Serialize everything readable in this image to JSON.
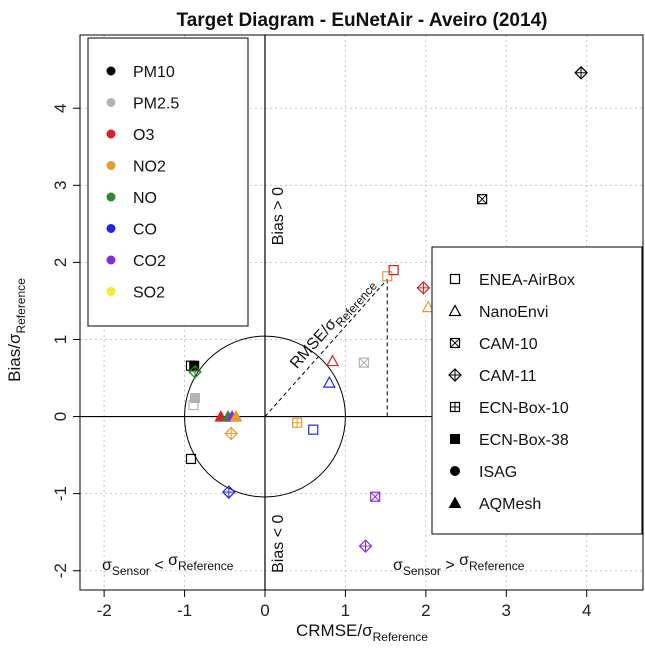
{
  "chart_data": {
    "type": "scatter",
    "title": "Target Diagram - EuNetAir - Aveiro (2014)",
    "xlabel": {
      "main": "CRMSE/σ",
      "sub": "Reference"
    },
    "ylabel": {
      "main": "Bias/σ",
      "sub": "Reference"
    },
    "xlim": [
      -2.3,
      4.7
    ],
    "ylim": [
      -2.25,
      4.95
    ],
    "x_ticks": [
      -2,
      -1,
      0,
      1,
      2,
      3,
      4
    ],
    "y_ticks": [
      -2,
      -1,
      0,
      1,
      2,
      3,
      4
    ],
    "grid": true,
    "unit_circle_radius": 1,
    "annotations": {
      "bias_pos": "Bias > 0",
      "bias_neg": "Bias < 0",
      "rmse_main": "RMSE/σ",
      "rmse_sub": "Reference",
      "sensor_lt": {
        "a": "σ",
        "a_sub": "Sensor",
        "op": " < ",
        "b": "σ",
        "b_sub": "Reference"
      },
      "sensor_gt": {
        "a": "σ",
        "a_sub": "Sensor",
        "op": " > ",
        "b": "σ",
        "b_sub": "Reference"
      }
    },
    "rmse_example_point": [
      1.52,
      1.78
    ],
    "pollutant_legend": [
      {
        "name": "PM10",
        "color": "#000000"
      },
      {
        "name": "PM2.5",
        "color": "#b3b3b3"
      },
      {
        "name": "O3",
        "color": "#dd1f26"
      },
      {
        "name": "NO2",
        "color": "#e89a2c"
      },
      {
        "name": "NO",
        "color": "#2b8a2b"
      },
      {
        "name": "CO",
        "color": "#2424ee"
      },
      {
        "name": "CO2",
        "color": "#8a2be2"
      },
      {
        "name": "SO2",
        "color": "#f2ee2a"
      }
    ],
    "sensor_legend": [
      {
        "name": "ENEA-AirBox",
        "marker": "square"
      },
      {
        "name": "NanoEnvi",
        "marker": "triangle"
      },
      {
        "name": "CAM-10",
        "marker": "square-x"
      },
      {
        "name": "CAM-11",
        "marker": "diamond-plus"
      },
      {
        "name": "ECN-Box-10",
        "marker": "square-plus"
      },
      {
        "name": "ECN-Box-38",
        "marker": "square-filled"
      },
      {
        "name": "ISAG",
        "marker": "circle-filled"
      },
      {
        "name": "AQMesh",
        "marker": "triangle-filled"
      }
    ],
    "points": [
      {
        "x": -0.92,
        "y": 0.66,
        "marker": "square",
        "pollutant": "PM10"
      },
      {
        "x": -0.88,
        "y": 0.66,
        "marker": "square-filled",
        "pollutant": "PM10"
      },
      {
        "x": -0.87,
        "y": 0.58,
        "marker": "diamond-plus",
        "pollutant": "NO"
      },
      {
        "x": -0.87,
        "y": 0.24,
        "marker": "square-filled",
        "pollutant": "PM2.5"
      },
      {
        "x": -0.89,
        "y": 0.15,
        "marker": "square",
        "pollutant": "PM2.5"
      },
      {
        "x": -0.92,
        "y": -0.55,
        "marker": "square",
        "pollutant": "PM10"
      },
      {
        "x": -0.55,
        "y": 0.0,
        "marker": "triangle-filled",
        "pollutant": "O3"
      },
      {
        "x": -0.46,
        "y": 0.0,
        "marker": "triangle-filled",
        "pollutant": "NO"
      },
      {
        "x": -0.41,
        "y": 0.0,
        "marker": "triangle-filled",
        "pollutant": "CO2"
      },
      {
        "x": -0.36,
        "y": 0.0,
        "marker": "triangle-filled",
        "pollutant": "NO2"
      },
      {
        "x": -0.42,
        "y": -0.22,
        "marker": "diamond-plus",
        "pollutant": "NO2"
      },
      {
        "x": -0.45,
        "y": -0.98,
        "marker": "diamond-plus",
        "pollutant": "CO"
      },
      {
        "x": 0.4,
        "y": -0.08,
        "marker": "square-plus",
        "pollutant": "NO2"
      },
      {
        "x": 0.6,
        "y": -0.17,
        "marker": "square",
        "pollutant": "CO"
      },
      {
        "x": 0.8,
        "y": 0.44,
        "marker": "triangle",
        "pollutant": "CO"
      },
      {
        "x": 0.84,
        "y": 0.72,
        "marker": "triangle",
        "pollutant": "O3"
      },
      {
        "x": 1.23,
        "y": 0.7,
        "marker": "square-x",
        "pollutant": "PM2.5"
      },
      {
        "x": 1.52,
        "y": 1.82,
        "marker": "square",
        "pollutant": "NO2"
      },
      {
        "x": 1.6,
        "y": 1.9,
        "marker": "square",
        "pollutant": "O3"
      },
      {
        "x": 1.97,
        "y": 1.67,
        "marker": "diamond-plus",
        "pollutant": "O3"
      },
      {
        "x": 2.03,
        "y": 1.42,
        "marker": "triangle",
        "pollutant": "NO2"
      },
      {
        "x": 2.7,
        "y": 2.82,
        "marker": "square-x",
        "pollutant": "PM10"
      },
      {
        "x": 3.93,
        "y": 4.46,
        "marker": "diamond-plus",
        "pollutant": "PM10"
      },
      {
        "x": 1.37,
        "y": -1.04,
        "marker": "square-x",
        "pollutant": "CO2"
      },
      {
        "x": 1.25,
        "y": -1.68,
        "marker": "diamond-plus",
        "pollutant": "CO2"
      }
    ]
  }
}
